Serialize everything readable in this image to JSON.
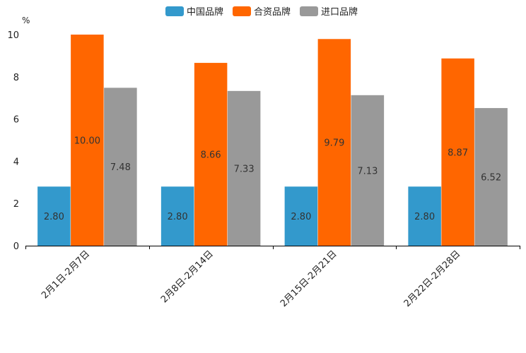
{
  "chart_data": {
    "type": "bar",
    "unit": "%",
    "categories": [
      "2月1日-2月7日",
      "2月8日-2月14日",
      "2月15日-2月21日",
      "2月22日-2月28日"
    ],
    "series": [
      {
        "name": "中国品牌",
        "color": "#3399cc",
        "values": [
          2.8,
          2.8,
          2.8,
          2.8
        ],
        "labels": [
          "2.80",
          "2.80",
          "2.80",
          "2.80"
        ]
      },
      {
        "name": "合资品牌",
        "color": "#ff6600",
        "values": [
          10.0,
          8.66,
          9.79,
          8.87
        ],
        "labels": [
          "10.00",
          "8.66",
          "9.79",
          "8.87"
        ]
      },
      {
        "name": "进口品牌",
        "color": "#999999",
        "values": [
          7.48,
          7.33,
          7.13,
          6.52
        ],
        "labels": [
          "7.48",
          "7.33",
          "7.13",
          "6.52"
        ]
      }
    ],
    "y_ticks": [
      "0",
      "2",
      "4",
      "6",
      "8",
      "10"
    ],
    "ylim": [
      0,
      10
    ],
    "legend_position": "top-center",
    "grid": false
  }
}
